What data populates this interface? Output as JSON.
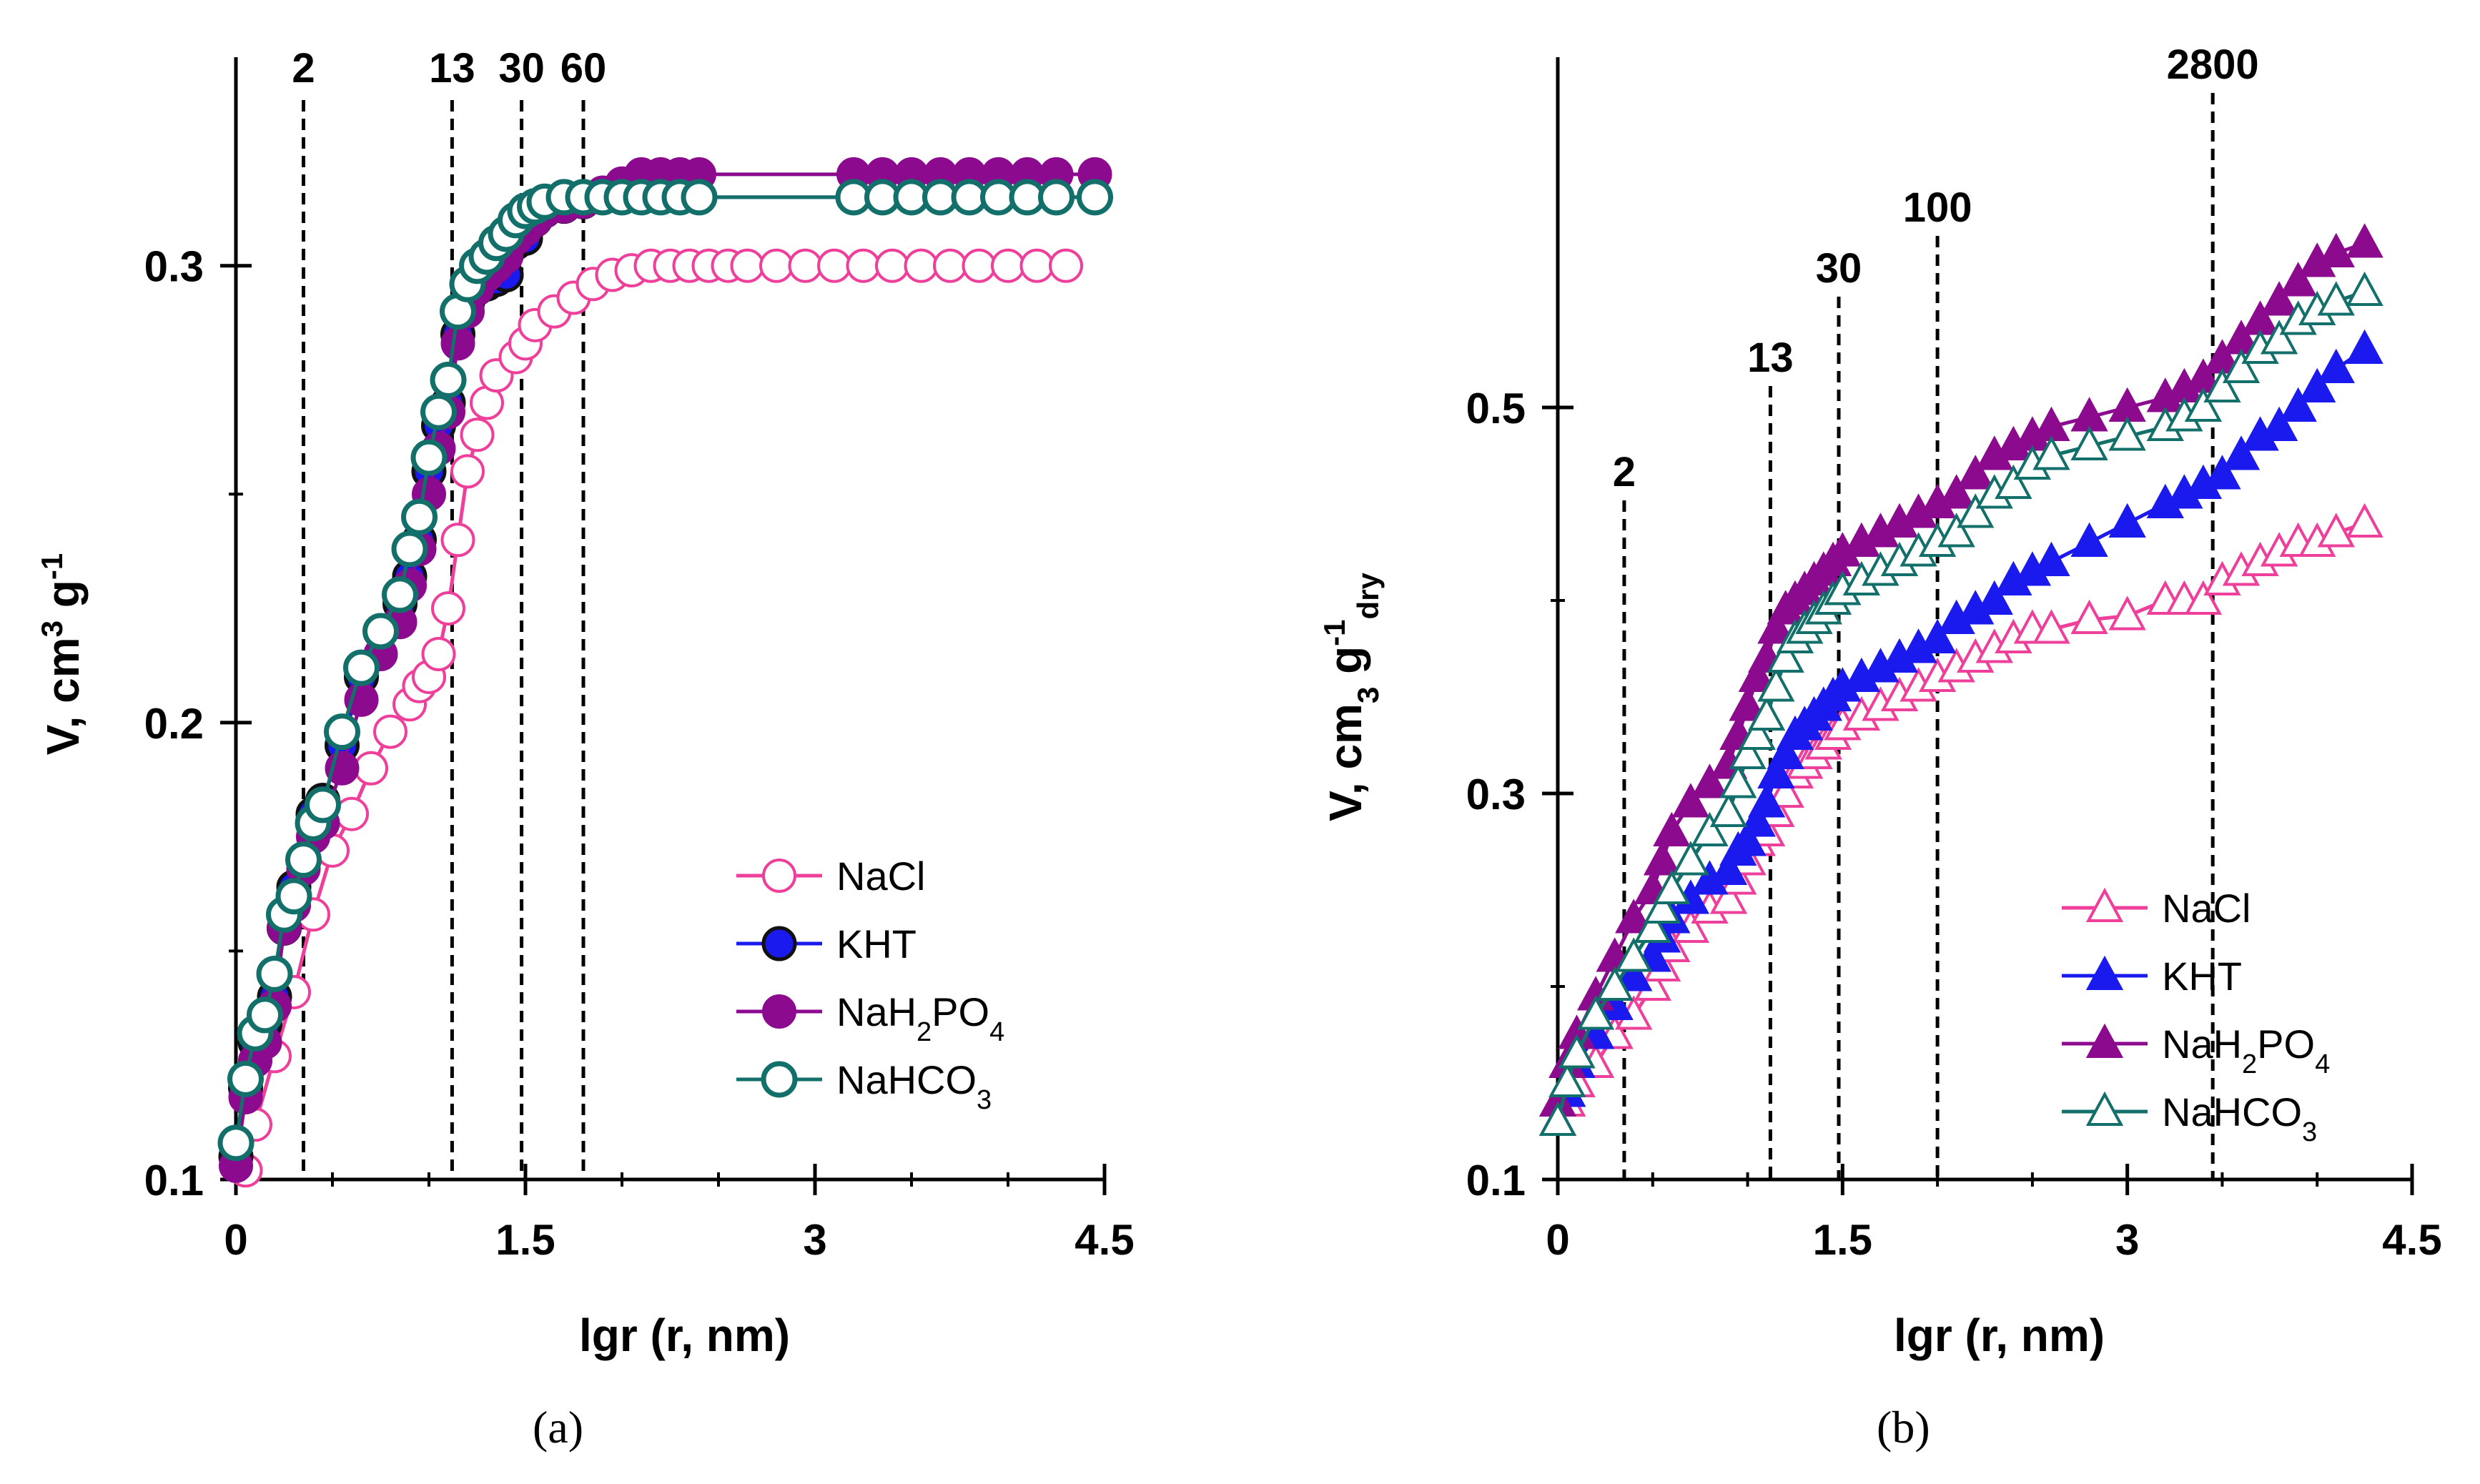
{
  "panels": [
    {
      "id": "a",
      "caption": "(a)",
      "ylabel_main": "V, cm",
      "ylabel_sup1": "3",
      "ylabel_mid": " g",
      "ylabel_sup2": "-1",
      "ylabel_sub": "",
      "xlabel": "lgr (r, nm)",
      "ref_lines": [
        {
          "x": 0.35,
          "label": "2"
        },
        {
          "x": 1.12,
          "label": "13"
        },
        {
          "x": 1.48,
          "label": "30"
        },
        {
          "x": 1.8,
          "label": "60"
        }
      ]
    },
    {
      "id": "b",
      "caption": "(b)",
      "ylabel_main": "V, cm",
      "ylabel_sup1": "",
      "ylabel_mid": "",
      "ylabel_sup2": "",
      "ylabel_sub": "dry",
      "xlabel": "lgr (r, nm)",
      "ref_lines": [
        {
          "x": 0.35,
          "label": "2"
        },
        {
          "x": 1.12,
          "label": "13"
        },
        {
          "x": 1.48,
          "label": "30"
        },
        {
          "x": 2.0,
          "label": "100"
        },
        {
          "x": 3.45,
          "label": "2800"
        }
      ]
    }
  ],
  "legend_entries": [
    {
      "key": "NaCl",
      "main": "NaCl",
      "sub": "",
      "tail": ""
    },
    {
      "key": "KHT",
      "main": "KHT",
      "sub": "",
      "tail": ""
    },
    {
      "key": "NaH2PO4",
      "main": "NaH",
      "sub": "2",
      "tail": "PO",
      "sub2": "4"
    },
    {
      "key": "NaHCO3",
      "main": "NaHCO",
      "sub": "3",
      "tail": ""
    }
  ],
  "colors": {
    "NaCl": "#ee3f9a",
    "KHT": "#1a1aee",
    "NaH2PO4": "#8b0a8e",
    "NaHCO3": "#136f6a",
    "axis": "#000000"
  },
  "chart_data": [
    {
      "type": "line",
      "panel": "a",
      "xlabel": "lgr (r, nm)",
      "ylabel": "V, cm3 g-1",
      "xlim": [
        0,
        4.5
      ],
      "ylim": [
        0.1,
        0.33
      ],
      "xticks": [
        0,
        1.5,
        3,
        4.5
      ],
      "xtick_labels": [
        "0",
        "1.5",
        "3",
        "4.5"
      ],
      "yticks": [
        0.1,
        0.2,
        0.3
      ],
      "ytick_labels": [
        "0.1",
        "0.2",
        "0.3"
      ],
      "legend": "center-right",
      "series": [
        {
          "name": "NaCl",
          "marker": "circle-open",
          "x": [
            0.05,
            0.1,
            0.2,
            0.3,
            0.4,
            0.5,
            0.6,
            0.7,
            0.8,
            0.9,
            0.95,
            1.0,
            1.05,
            1.1,
            1.15,
            1.2,
            1.25,
            1.3,
            1.35,
            1.45,
            1.5,
            1.55,
            1.65,
            1.75,
            1.85,
            1.95,
            2.05,
            2.15,
            2.25,
            2.35,
            2.45,
            2.55,
            2.65,
            2.8,
            2.95,
            3.1,
            3.25,
            3.4,
            3.55,
            3.7,
            3.85,
            4.0,
            4.15,
            4.3
          ],
          "y": [
            0.102,
            0.112,
            0.127,
            0.141,
            0.158,
            0.172,
            0.18,
            0.19,
            0.198,
            0.204,
            0.208,
            0.21,
            0.215,
            0.225,
            0.24,
            0.255,
            0.263,
            0.27,
            0.276,
            0.28,
            0.283,
            0.287,
            0.29,
            0.293,
            0.296,
            0.298,
            0.299,
            0.3,
            0.3,
            0.3,
            0.3,
            0.3,
            0.3,
            0.3,
            0.3,
            0.3,
            0.3,
            0.3,
            0.3,
            0.3,
            0.3,
            0.3,
            0.3,
            0.3
          ]
        },
        {
          "name": "KHT",
          "marker": "circle-filled-outline",
          "x": [
            0.0,
            0.05,
            0.1,
            0.15,
            0.2,
            0.25,
            0.3,
            0.35,
            0.4,
            0.45,
            0.55,
            0.65,
            0.75,
            0.85,
            0.9,
            0.95,
            1.0,
            1.05,
            1.1,
            1.15,
            1.2,
            1.25,
            1.3,
            1.35,
            1.4,
            1.45,
            1.5,
            1.55,
            1.6,
            1.7,
            1.8,
            1.9,
            2.0,
            2.1,
            2.2,
            2.3,
            2.4,
            3.2,
            3.35,
            3.5,
            3.65,
            3.8,
            3.95,
            4.1,
            4.25,
            4.45
          ],
          "y": [
            0.105,
            0.12,
            0.13,
            0.134,
            0.14,
            0.155,
            0.164,
            0.17,
            0.18,
            0.183,
            0.195,
            0.21,
            0.22,
            0.226,
            0.232,
            0.24,
            0.255,
            0.265,
            0.27,
            0.285,
            0.292,
            0.295,
            0.296,
            0.297,
            0.298,
            0.305,
            0.306,
            0.31,
            0.312,
            0.313,
            0.314,
            0.315,
            0.315,
            0.315,
            0.315,
            0.315,
            0.315,
            0.315,
            0.315,
            0.315,
            0.315,
            0.315,
            0.315,
            0.315,
            0.315,
            0.315
          ]
        },
        {
          "name": "NaH2PO4",
          "marker": "circle-filled",
          "x": [
            0.0,
            0.05,
            0.1,
            0.15,
            0.2,
            0.25,
            0.3,
            0.35,
            0.4,
            0.45,
            0.55,
            0.65,
            0.75,
            0.85,
            0.9,
            0.95,
            1.0,
            1.05,
            1.1,
            1.15,
            1.2,
            1.25,
            1.3,
            1.35,
            1.4,
            1.45,
            1.5,
            1.55,
            1.6,
            1.7,
            1.8,
            1.9,
            2.0,
            2.1,
            2.2,
            2.3,
            2.4,
            3.2,
            3.35,
            3.5,
            3.65,
            3.8,
            3.95,
            4.1,
            4.25,
            4.45
          ],
          "y": [
            0.103,
            0.118,
            0.126,
            0.13,
            0.138,
            0.155,
            0.16,
            0.168,
            0.175,
            0.178,
            0.19,
            0.205,
            0.215,
            0.222,
            0.23,
            0.238,
            0.25,
            0.26,
            0.268,
            0.283,
            0.29,
            0.295,
            0.298,
            0.3,
            0.302,
            0.306,
            0.308,
            0.31,
            0.312,
            0.313,
            0.314,
            0.316,
            0.318,
            0.32,
            0.32,
            0.32,
            0.32,
            0.32,
            0.32,
            0.32,
            0.32,
            0.32,
            0.32,
            0.32,
            0.32,
            0.32
          ]
        },
        {
          "name": "NaHCO3",
          "marker": "circle-open-thick",
          "x": [
            0.0,
            0.05,
            0.1,
            0.15,
            0.2,
            0.25,
            0.3,
            0.35,
            0.4,
            0.45,
            0.55,
            0.65,
            0.75,
            0.85,
            0.9,
            0.95,
            1.0,
            1.05,
            1.1,
            1.15,
            1.2,
            1.25,
            1.3,
            1.35,
            1.4,
            1.45,
            1.5,
            1.55,
            1.6,
            1.7,
            1.8,
            1.9,
            2.0,
            2.1,
            2.2,
            2.3,
            2.4,
            3.2,
            3.35,
            3.5,
            3.65,
            3.8,
            3.95,
            4.1,
            4.25,
            4.45
          ],
          "y": [
            0.108,
            0.122,
            0.132,
            0.136,
            0.145,
            0.158,
            0.162,
            0.17,
            0.178,
            0.182,
            0.198,
            0.212,
            0.22,
            0.228,
            0.238,
            0.245,
            0.258,
            0.268,
            0.275,
            0.29,
            0.296,
            0.3,
            0.302,
            0.305,
            0.307,
            0.31,
            0.312,
            0.313,
            0.314,
            0.315,
            0.315,
            0.315,
            0.315,
            0.315,
            0.315,
            0.315,
            0.315,
            0.315,
            0.315,
            0.315,
            0.315,
            0.315,
            0.315,
            0.315,
            0.315,
            0.315
          ]
        }
      ]
    },
    {
      "type": "line",
      "panel": "b",
      "xlabel": "lgr (r, nm)",
      "ylabel": "V, cm3 g-1 dry",
      "xlim": [
        0,
        4.5
      ],
      "ylim": [
        0.1,
        0.6
      ],
      "xticks": [
        0,
        1.5,
        3,
        4.5
      ],
      "xtick_labels": [
        "0",
        "1.5",
        "3",
        "4.5"
      ],
      "yticks": [
        0.1,
        0.3,
        0.5
      ],
      "ytick_labels": [
        "0.1",
        "0.3",
        "0.5"
      ],
      "legend": "lower-right",
      "series": [
        {
          "name": "NaCl",
          "marker": "triangle-open",
          "x": [
            0.0,
            0.05,
            0.1,
            0.2,
            0.3,
            0.4,
            0.5,
            0.55,
            0.6,
            0.7,
            0.8,
            0.9,
            0.95,
            1.0,
            1.05,
            1.1,
            1.15,
            1.2,
            1.25,
            1.3,
            1.35,
            1.4,
            1.45,
            1.5,
            1.6,
            1.7,
            1.8,
            1.9,
            2.0,
            2.1,
            2.2,
            2.3,
            2.4,
            2.5,
            2.6,
            2.8,
            3.0,
            3.2,
            3.3,
            3.4,
            3.5,
            3.6,
            3.7,
            3.8,
            3.9,
            4.0,
            4.1,
            4.25
          ],
          "y": [
            0.13,
            0.14,
            0.15,
            0.16,
            0.175,
            0.185,
            0.2,
            0.21,
            0.22,
            0.23,
            0.24,
            0.245,
            0.255,
            0.265,
            0.275,
            0.28,
            0.29,
            0.3,
            0.31,
            0.315,
            0.32,
            0.325,
            0.33,
            0.335,
            0.34,
            0.345,
            0.35,
            0.355,
            0.36,
            0.365,
            0.37,
            0.375,
            0.38,
            0.385,
            0.385,
            0.39,
            0.392,
            0.4,
            0.4,
            0.4,
            0.41,
            0.415,
            0.42,
            0.425,
            0.43,
            0.43,
            0.435,
            0.44
          ]
        },
        {
          "name": "KHT",
          "marker": "triangle-filled",
          "x": [
            0.0,
            0.05,
            0.1,
            0.2,
            0.3,
            0.4,
            0.5,
            0.55,
            0.6,
            0.7,
            0.8,
            0.9,
            0.95,
            1.0,
            1.05,
            1.1,
            1.15,
            1.2,
            1.25,
            1.3,
            1.35,
            1.4,
            1.45,
            1.5,
            1.6,
            1.7,
            1.8,
            1.9,
            2.0,
            2.1,
            2.2,
            2.3,
            2.4,
            2.5,
            2.6,
            2.8,
            3.0,
            3.2,
            3.3,
            3.4,
            3.5,
            3.6,
            3.7,
            3.8,
            3.9,
            4.0,
            4.1,
            4.25
          ],
          "y": [
            0.13,
            0.145,
            0.16,
            0.175,
            0.19,
            0.205,
            0.215,
            0.225,
            0.235,
            0.245,
            0.255,
            0.26,
            0.27,
            0.275,
            0.285,
            0.295,
            0.31,
            0.32,
            0.33,
            0.335,
            0.34,
            0.345,
            0.35,
            0.355,
            0.36,
            0.365,
            0.37,
            0.375,
            0.38,
            0.39,
            0.395,
            0.4,
            0.41,
            0.415,
            0.42,
            0.43,
            0.44,
            0.45,
            0.455,
            0.46,
            0.465,
            0.475,
            0.485,
            0.49,
            0.5,
            0.51,
            0.52,
            0.53
          ]
        },
        {
          "name": "NaH2PO4",
          "marker": "triangle-filled",
          "x": [
            0.0,
            0.05,
            0.1,
            0.2,
            0.3,
            0.4,
            0.5,
            0.55,
            0.6,
            0.7,
            0.8,
            0.9,
            0.95,
            1.0,
            1.05,
            1.1,
            1.15,
            1.2,
            1.25,
            1.3,
            1.35,
            1.4,
            1.45,
            1.5,
            1.6,
            1.7,
            1.8,
            1.9,
            2.0,
            2.1,
            2.2,
            2.3,
            2.4,
            2.5,
            2.6,
            2.8,
            3.0,
            3.2,
            3.3,
            3.4,
            3.5,
            3.6,
            3.7,
            3.8,
            3.9,
            4.0,
            4.1,
            4.25
          ],
          "y": [
            0.14,
            0.16,
            0.175,
            0.195,
            0.215,
            0.235,
            0.25,
            0.265,
            0.28,
            0.295,
            0.305,
            0.315,
            0.33,
            0.345,
            0.36,
            0.37,
            0.385,
            0.395,
            0.4,
            0.405,
            0.41,
            0.415,
            0.42,
            0.425,
            0.43,
            0.435,
            0.44,
            0.445,
            0.45,
            0.455,
            0.465,
            0.475,
            0.48,
            0.485,
            0.49,
            0.495,
            0.5,
            0.505,
            0.51,
            0.515,
            0.525,
            0.535,
            0.545,
            0.555,
            0.565,
            0.575,
            0.58,
            0.585
          ]
        },
        {
          "name": "NaHCO3",
          "marker": "triangle-open",
          "x": [
            0.0,
            0.05,
            0.1,
            0.2,
            0.3,
            0.4,
            0.5,
            0.55,
            0.6,
            0.7,
            0.8,
            0.9,
            0.95,
            1.0,
            1.05,
            1.1,
            1.15,
            1.2,
            1.25,
            1.3,
            1.35,
            1.4,
            1.45,
            1.5,
            1.6,
            1.7,
            1.8,
            1.9,
            2.0,
            2.1,
            2.2,
            2.3,
            2.4,
            2.5,
            2.6,
            2.8,
            3.0,
            3.2,
            3.3,
            3.4,
            3.5,
            3.6,
            3.7,
            3.8,
            3.9,
            4.0,
            4.1,
            4.25
          ],
          "y": [
            0.13,
            0.15,
            0.165,
            0.185,
            0.2,
            0.215,
            0.23,
            0.24,
            0.25,
            0.265,
            0.28,
            0.29,
            0.305,
            0.32,
            0.33,
            0.34,
            0.355,
            0.37,
            0.38,
            0.385,
            0.39,
            0.395,
            0.4,
            0.405,
            0.41,
            0.415,
            0.42,
            0.425,
            0.43,
            0.435,
            0.445,
            0.455,
            0.46,
            0.47,
            0.475,
            0.48,
            0.485,
            0.49,
            0.495,
            0.5,
            0.51,
            0.52,
            0.53,
            0.535,
            0.545,
            0.55,
            0.555,
            0.56
          ]
        }
      ]
    }
  ]
}
